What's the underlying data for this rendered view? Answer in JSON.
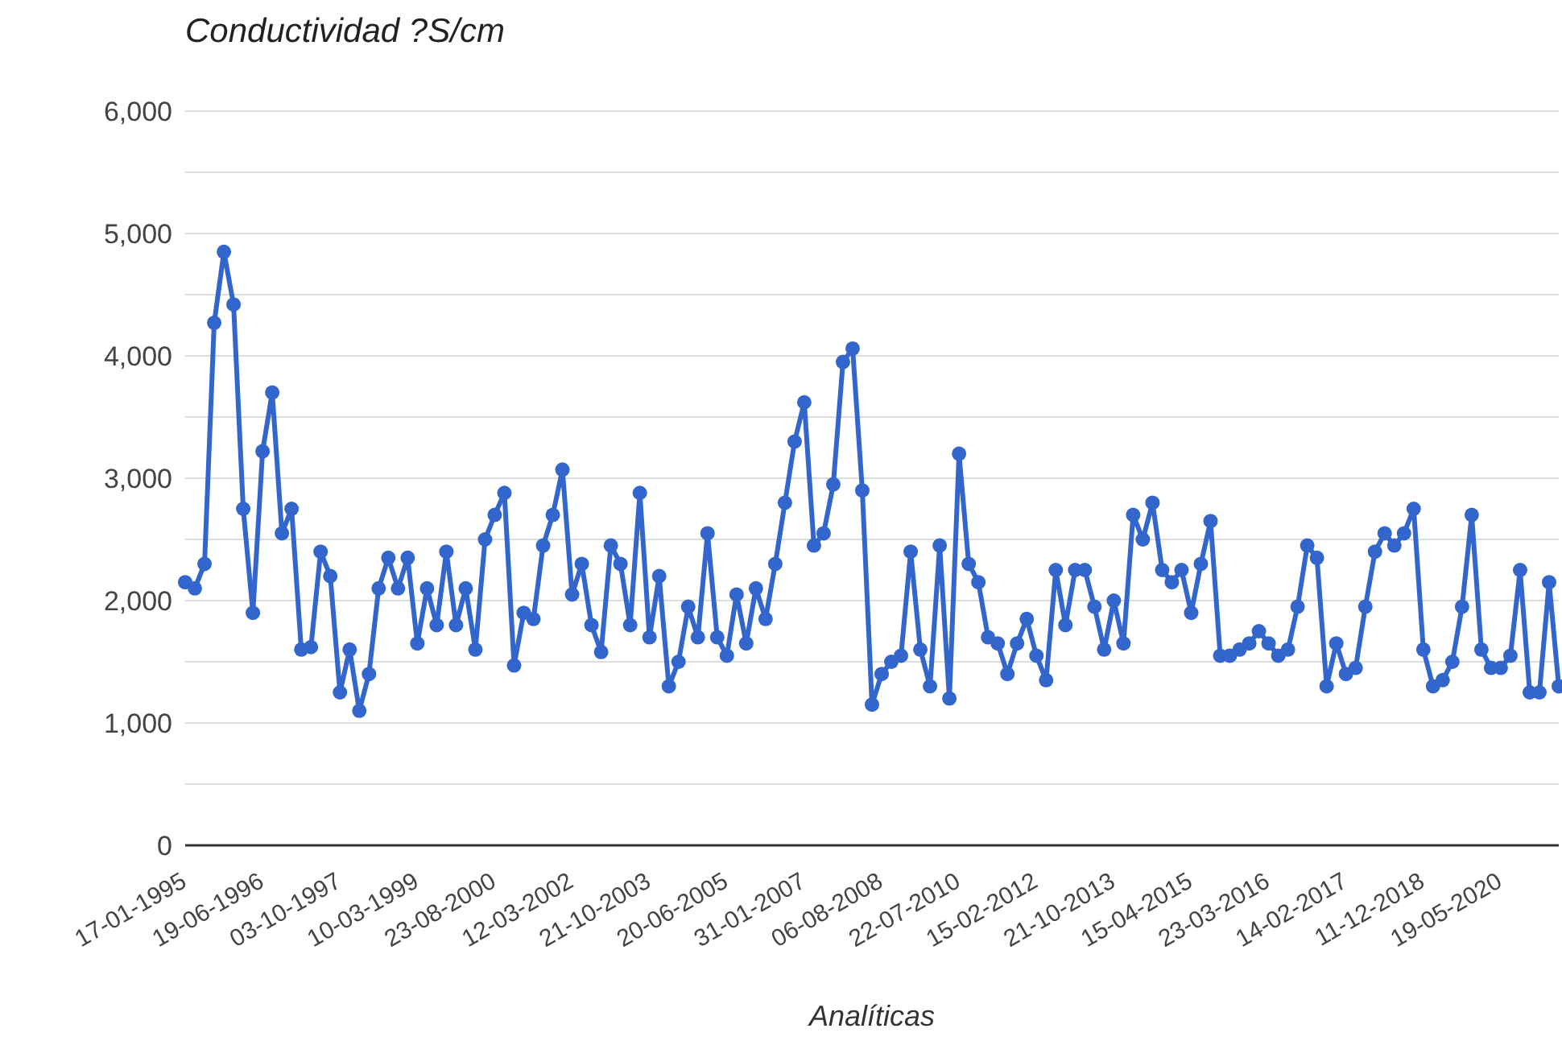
{
  "chart_data": {
    "type": "line",
    "title": "Conductividad ?S/cm",
    "xlabel": "Analíticas",
    "categories": [
      "17-01-1995",
      null,
      null,
      null,
      null,
      null,
      null,
      null,
      "19-06-1996",
      null,
      null,
      null,
      null,
      null,
      null,
      null,
      "03-10-1997",
      null,
      null,
      null,
      null,
      null,
      null,
      null,
      "10-03-1999",
      null,
      null,
      null,
      null,
      null,
      null,
      null,
      "23-08-2000",
      null,
      null,
      null,
      null,
      null,
      null,
      null,
      "12-03-2002",
      null,
      null,
      null,
      null,
      null,
      null,
      null,
      "21-10-2003",
      null,
      null,
      null,
      null,
      null,
      null,
      null,
      "20-06-2005",
      null,
      null,
      null,
      null,
      null,
      null,
      null,
      "31-01-2007",
      null,
      null,
      null,
      null,
      null,
      null,
      null,
      "06-08-2008",
      null,
      null,
      null,
      null,
      null,
      null,
      null,
      "22-07-2010",
      null,
      null,
      null,
      null,
      null,
      null,
      null,
      "15-02-2012",
      null,
      null,
      null,
      null,
      null,
      null,
      null,
      "21-10-2013",
      null,
      null,
      null,
      null,
      null,
      null,
      null,
      "15-04-2015",
      null,
      null,
      null,
      null,
      null,
      null,
      null,
      "23-03-2016",
      null,
      null,
      null,
      null,
      null,
      null,
      null,
      "14-02-2017",
      null,
      null,
      null,
      null,
      null,
      null,
      null,
      "11-12-2018",
      null,
      null,
      null,
      null,
      null,
      null,
      null,
      "19-05-2020",
      null,
      null,
      null,
      null,
      null,
      null
    ],
    "series": [
      {
        "color": "#3366cc",
        "values": [
          2150,
          2100,
          2300,
          4270,
          4850,
          4420,
          2750,
          1900,
          3220,
          3700,
          2550,
          2750,
          1600,
          1620,
          2400,
          2200,
          1250,
          1600,
          1100,
          1400,
          2100,
          2350,
          2100,
          2350,
          1650,
          2100,
          1800,
          2400,
          1800,
          2100,
          1600,
          2500,
          2700,
          2880,
          1470,
          1900,
          1850,
          2450,
          2700,
          3070,
          2050,
          2300,
          1800,
          1580,
          2450,
          2300,
          1800,
          2880,
          1700,
          2200,
          1300,
          1500,
          1950,
          1700,
          2550,
          1700,
          1550,
          2050,
          1650,
          2100,
          1850,
          2300,
          2800,
          3300,
          3620,
          2450,
          2550,
          2950,
          3950,
          4060,
          2900,
          1150,
          1400,
          1500,
          1550,
          2400,
          1600,
          1300,
          2450,
          1200,
          3200,
          2300,
          2150,
          1700,
          1650,
          1400,
          1650,
          1850,
          1550,
          1350,
          2250,
          1800,
          2250,
          2250,
          1950,
          1600,
          2000,
          1650,
          2700,
          2500,
          2800,
          2250,
          2150,
          2250,
          1900,
          2300,
          2650,
          1550,
          1550,
          1600,
          1650,
          1750,
          1650,
          1550,
          1600,
          1950,
          2450,
          2350,
          1300,
          1650,
          1400,
          1450,
          1950,
          2400,
          2550,
          2450,
          2550,
          2750,
          1600,
          1300,
          1350,
          1500,
          1950,
          2700,
          1600,
          1450,
          1450,
          1550,
          2250,
          1250,
          1250,
          2150,
          1300
        ]
      }
    ],
    "ylim": [
      0,
      6000
    ],
    "yticks": [
      0,
      {
        "value": 500,
        "label": null
      },
      {
        "value": 1000,
        "label": "1,000"
      },
      {
        "value": 1500,
        "label": null
      },
      {
        "value": 2000,
        "label": "2,000"
      },
      {
        "value": 2500,
        "label": null
      },
      {
        "value": 3000,
        "label": "3,000"
      },
      {
        "value": 3500,
        "label": null
      },
      {
        "value": 4000,
        "label": "4,000"
      },
      {
        "value": 4500,
        "label": null
      },
      {
        "value": 5000,
        "label": "5,000"
      },
      {
        "value": 5500,
        "label": null
      },
      {
        "value": 6000,
        "label": "6,000"
      }
    ],
    "grid": "y",
    "marker": "circle",
    "line_style": "solid"
  }
}
